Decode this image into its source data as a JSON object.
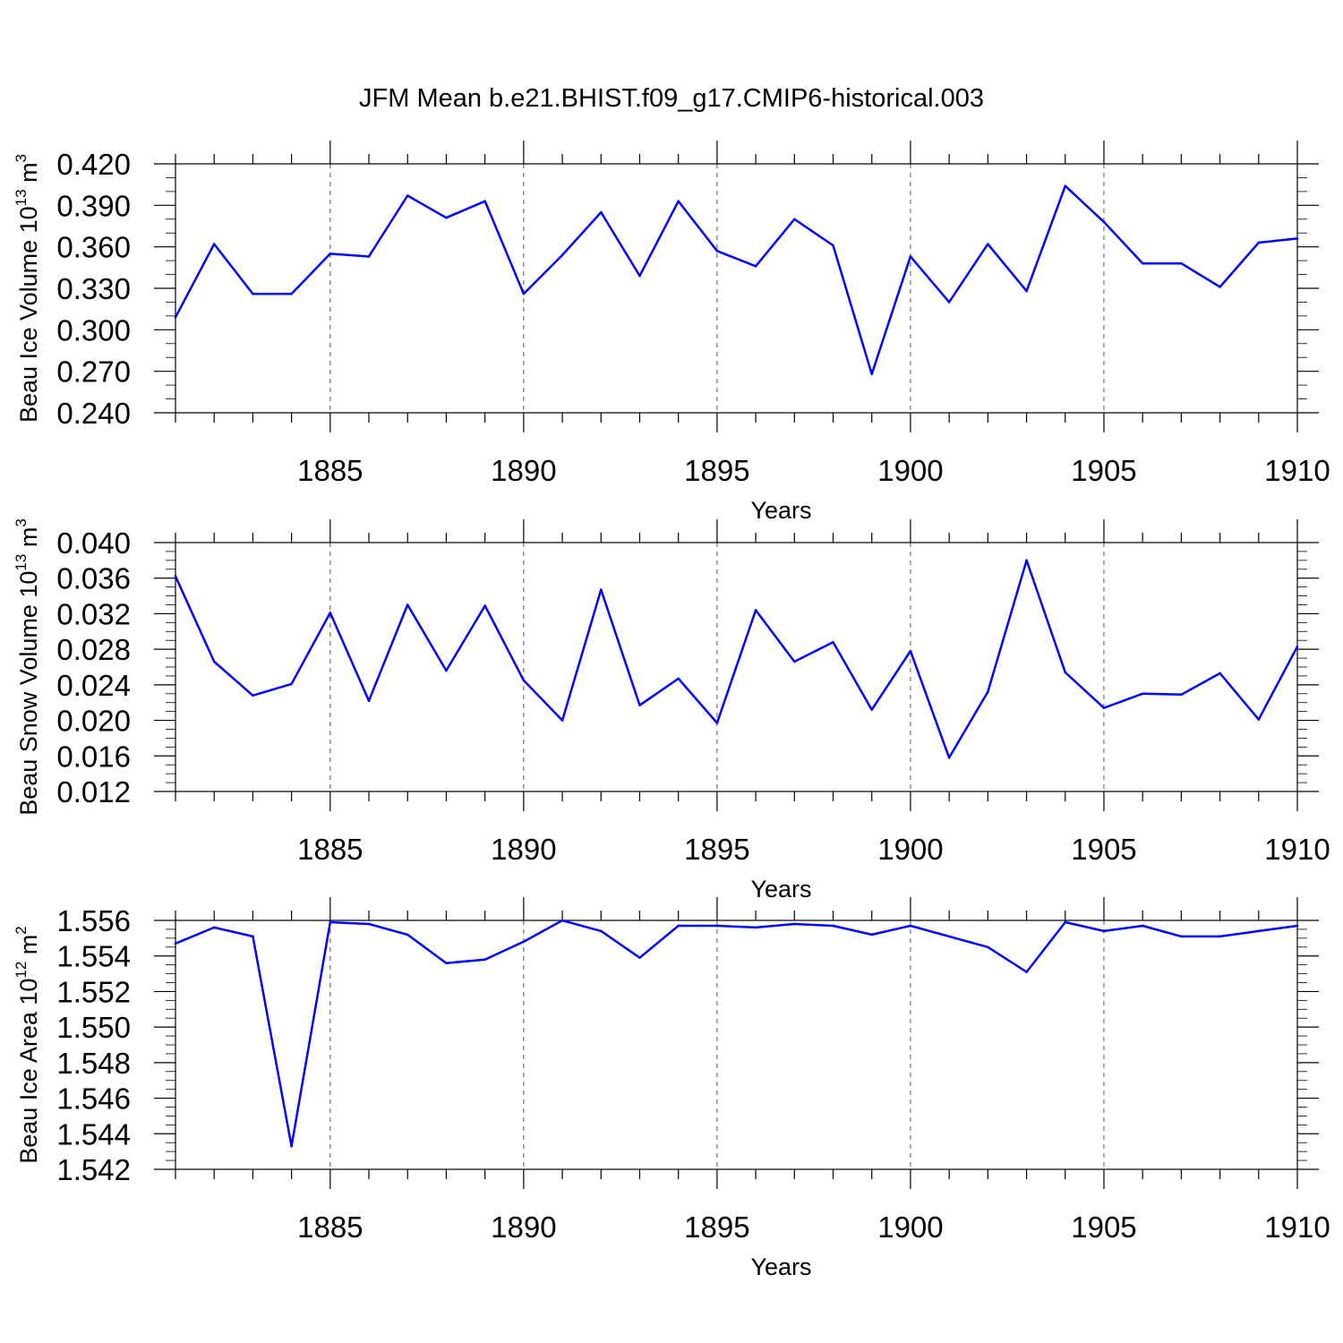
{
  "title": "JFM Mean b.e21.BHIST.f09_g17.CMIP6-historical.003",
  "colors": {
    "line": "#0000ff",
    "axis": "#000000",
    "grid": "#555555"
  },
  "chart_data": [
    {
      "type": "line",
      "name": "ice-volume",
      "ylabel": {
        "text": "Beau Ice Volume 10",
        "exp": "13",
        "unit": " m",
        "unit_exp": "3"
      },
      "xlabel": "Years",
      "xlim": [
        1881,
        1910
      ],
      "ylim": [
        0.24,
        0.42
      ],
      "yticks": [
        0.24,
        0.27,
        0.3,
        0.33,
        0.36,
        0.39,
        0.42
      ],
      "ytick_labels": [
        "0.240",
        "0.270",
        "0.300",
        "0.330",
        "0.360",
        "0.390",
        "0.420"
      ],
      "y_minor_step": 0.01,
      "xticks": [
        1885,
        1890,
        1895,
        1900,
        1905,
        1910
      ],
      "xtick_labels": [
        "1885",
        "1890",
        "1895",
        "1900",
        "1905",
        "1910"
      ],
      "x": [
        1881,
        1882,
        1883,
        1884,
        1885,
        1886,
        1887,
        1888,
        1889,
        1890,
        1891,
        1892,
        1893,
        1894,
        1895,
        1896,
        1897,
        1898,
        1899,
        1900,
        1901,
        1902,
        1903,
        1904,
        1905,
        1906,
        1907,
        1908,
        1909,
        1910
      ],
      "values": [
        0.309,
        0.362,
        0.326,
        0.326,
        0.355,
        0.353,
        0.397,
        0.381,
        0.393,
        0.326,
        0.354,
        0.385,
        0.339,
        0.393,
        0.357,
        0.346,
        0.38,
        0.361,
        0.268,
        0.353,
        0.32,
        0.362,
        0.328,
        0.404,
        0.378,
        0.348,
        0.348,
        0.331,
        0.363,
        0.366
      ],
      "grid": "dashed vertical at major x ticks"
    },
    {
      "type": "line",
      "name": "snow-volume",
      "ylabel": {
        "text": "Beau Snow Volume 10",
        "exp": "13",
        "unit": " m",
        "unit_exp": "3"
      },
      "xlabel": "Years",
      "xlim": [
        1881,
        1910
      ],
      "ylim": [
        0.012,
        0.04
      ],
      "yticks": [
        0.012,
        0.016,
        0.02,
        0.024,
        0.028,
        0.032,
        0.036,
        0.04
      ],
      "ytick_labels": [
        "0.012",
        "0.016",
        "0.020",
        "0.024",
        "0.028",
        "0.032",
        "0.036",
        "0.040"
      ],
      "y_minor_step": 0.001,
      "xticks": [
        1885,
        1890,
        1895,
        1900,
        1905,
        1910
      ],
      "xtick_labels": [
        "1885",
        "1890",
        "1895",
        "1900",
        "1905",
        "1910"
      ],
      "x": [
        1881,
        1882,
        1883,
        1884,
        1885,
        1886,
        1887,
        1888,
        1889,
        1890,
        1891,
        1892,
        1893,
        1894,
        1895,
        1896,
        1897,
        1898,
        1899,
        1900,
        1901,
        1902,
        1903,
        1904,
        1905,
        1906,
        1907,
        1908,
        1909,
        1910
      ],
      "values": [
        0.0362,
        0.0266,
        0.0228,
        0.0241,
        0.0321,
        0.0222,
        0.033,
        0.0256,
        0.0329,
        0.0245,
        0.02,
        0.0347,
        0.0217,
        0.0247,
        0.0197,
        0.0324,
        0.0266,
        0.0288,
        0.0212,
        0.0278,
        0.0158,
        0.0232,
        0.038,
        0.0254,
        0.0214,
        0.023,
        0.0229,
        0.0253,
        0.0201,
        0.0283
      ],
      "grid": "dashed vertical at major x ticks"
    },
    {
      "type": "line",
      "name": "ice-area",
      "ylabel": {
        "text": "Beau Ice Area 10",
        "exp": "12",
        "unit": " m",
        "unit_exp": "2"
      },
      "xlabel": "Years",
      "xlim": [
        1881,
        1910
      ],
      "ylim": [
        1.542,
        1.556
      ],
      "yticks": [
        1.542,
        1.544,
        1.546,
        1.548,
        1.55,
        1.552,
        1.554,
        1.556
      ],
      "ytick_labels": [
        "1.542",
        "1.544",
        "1.546",
        "1.548",
        "1.550",
        "1.552",
        "1.554",
        "1.556"
      ],
      "y_minor_step": 0.0005,
      "xticks": [
        1885,
        1890,
        1895,
        1900,
        1905,
        1910
      ],
      "xtick_labels": [
        "1885",
        "1890",
        "1895",
        "1900",
        "1905",
        "1910"
      ],
      "x": [
        1881,
        1882,
        1883,
        1884,
        1885,
        1886,
        1887,
        1888,
        1889,
        1890,
        1891,
        1892,
        1893,
        1894,
        1895,
        1896,
        1897,
        1898,
        1899,
        1900,
        1901,
        1902,
        1903,
        1904,
        1905,
        1906,
        1907,
        1908,
        1909,
        1910
      ],
      "values": [
        1.5547,
        1.5556,
        1.5551,
        1.5433,
        1.5559,
        1.5558,
        1.5552,
        1.5536,
        1.5538,
        1.5548,
        1.556,
        1.5554,
        1.5539,
        1.5557,
        1.5557,
        1.5556,
        1.5558,
        1.5557,
        1.5552,
        1.5557,
        1.5551,
        1.5545,
        1.5531,
        1.5559,
        1.5554,
        1.5557,
        1.5551,
        1.5551,
        1.5554,
        1.5557
      ],
      "grid": "dashed vertical at major x ticks"
    }
  ]
}
